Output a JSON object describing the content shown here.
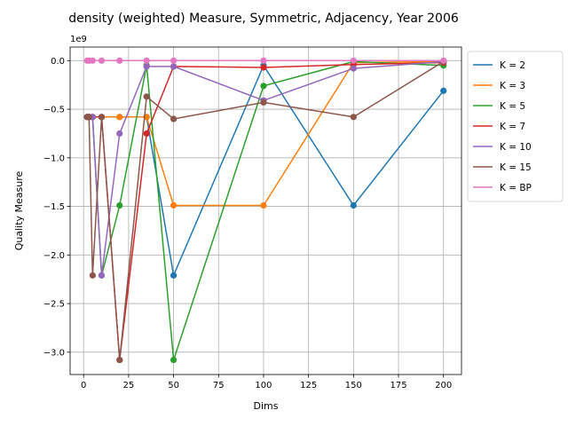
{
  "chart_data": {
    "type": "line",
    "title": "density (weighted) Measure, Symmetric, Adjacency, Year 2006",
    "xlabel": "Dims",
    "ylabel": "Quality Measure",
    "y_offset_label": "1e9",
    "xlim": [
      -7.5,
      210
    ],
    "ylim": [
      -3.23,
      0.14
    ],
    "xticks": [
      0,
      25,
      50,
      75,
      100,
      125,
      150,
      175,
      200
    ],
    "yticks": [
      -3.0,
      -2.5,
      -2.0,
      -1.5,
      -1.0,
      -0.5,
      0.0
    ],
    "ytick_labels": [
      "−3.0",
      "−2.5",
      "−2.0",
      "−1.5",
      "−1.0",
      "−0.5",
      "0.0"
    ],
    "grid": true,
    "legend_position": "outside-right-top",
    "series": [
      {
        "name": "K = 2",
        "color": "#1f77b4",
        "x": [
          2,
          3,
          5,
          10,
          20,
          35,
          50,
          100,
          150,
          200
        ],
        "y": [
          -0.58,
          -0.58,
          -0.58,
          -0.58,
          -0.58,
          -0.58,
          -2.21,
          -0.05,
          -1.49,
          -0.31
        ]
      },
      {
        "name": "K = 3",
        "color": "#ff7f0e",
        "x": [
          2,
          3,
          5,
          10,
          20,
          35,
          50,
          100,
          150,
          200
        ],
        "y": [
          -0.58,
          -0.58,
          -0.58,
          -0.58,
          -0.58,
          -0.58,
          -1.49,
          -1.49,
          -0.02,
          -0.01
        ]
      },
      {
        "name": "K = 5",
        "color": "#2ca02c",
        "x": [
          2,
          3,
          5,
          10,
          20,
          35,
          50,
          100,
          150,
          200
        ],
        "y": [
          -0.58,
          -0.58,
          -0.58,
          -2.21,
          -1.49,
          -0.05,
          -3.08,
          -0.26,
          -0.01,
          -0.05
        ]
      },
      {
        "name": "K = 7",
        "color": "#d62728",
        "x": [
          2,
          3,
          5,
          10,
          20,
          35,
          50,
          100,
          150,
          200
        ],
        "y": [
          -0.58,
          -0.58,
          -0.58,
          -0.58,
          -3.08,
          -0.75,
          -0.06,
          -0.07,
          -0.04,
          -0.02
        ]
      },
      {
        "name": "K = 10",
        "color": "#9467bd",
        "x": [
          2,
          3,
          5,
          10,
          20,
          35,
          50,
          100,
          150,
          200
        ],
        "y": [
          -0.58,
          -0.58,
          -0.58,
          -2.21,
          -0.75,
          -0.06,
          -0.06,
          -0.41,
          -0.08,
          -0.01
        ]
      },
      {
        "name": "K = 15",
        "color": "#8c564b",
        "x": [
          2,
          3,
          5,
          10,
          20,
          35,
          50,
          100,
          150,
          200
        ],
        "y": [
          -0.58,
          -0.58,
          -2.21,
          -0.58,
          -3.08,
          -0.37,
          -0.6,
          -0.43,
          -0.58,
          -0.01
        ]
      },
      {
        "name": "K = BP",
        "color": "#e377c2",
        "x": [
          2,
          3,
          5,
          10,
          20,
          35,
          50,
          100,
          150,
          200
        ],
        "y": [
          0.0,
          0.0,
          0.0,
          0.0,
          0.0,
          0.0,
          0.0,
          0.0,
          0.0,
          0.0
        ]
      }
    ]
  }
}
